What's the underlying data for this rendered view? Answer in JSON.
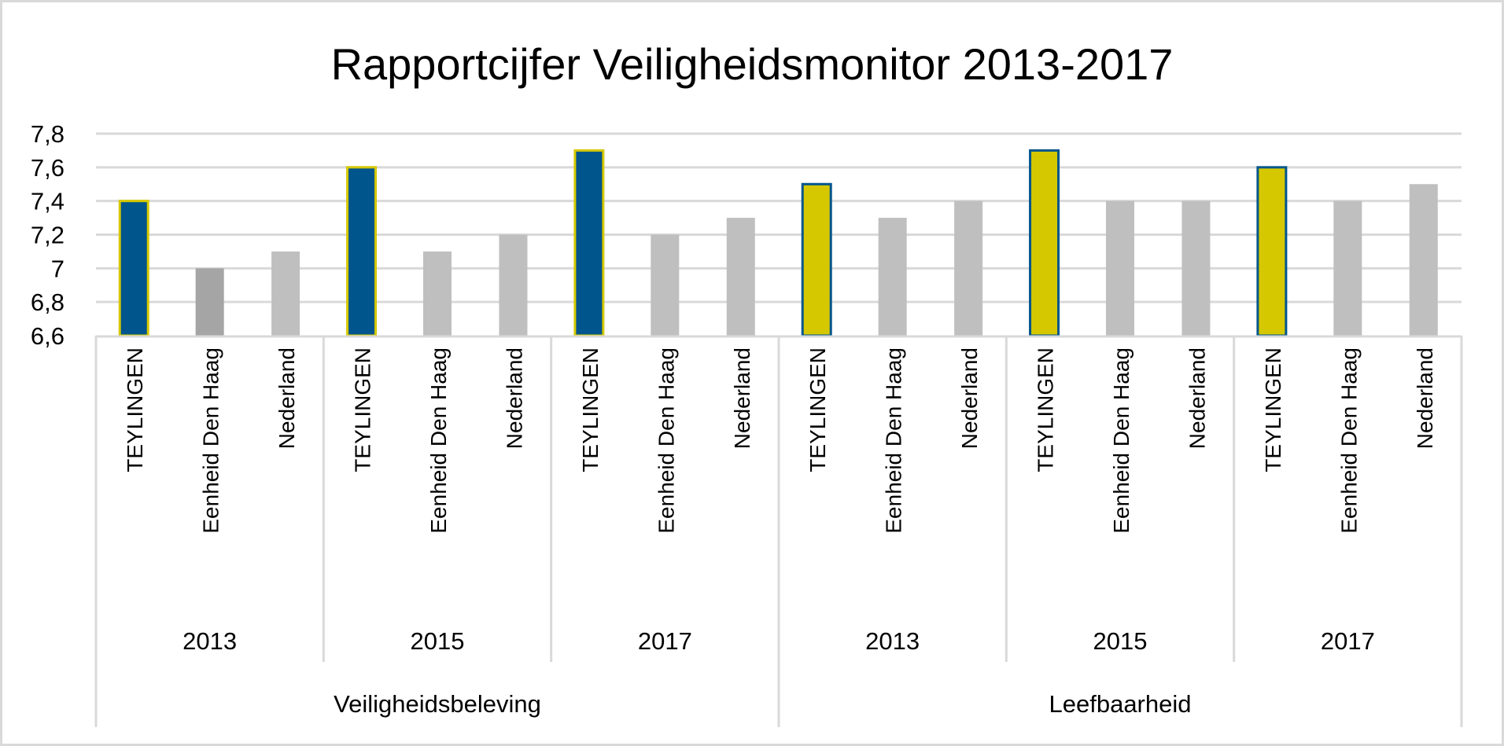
{
  "chart_data": {
    "type": "bar",
    "title": "Rapportcijfer Veiligheidsmonitor 2013-2017",
    "xlabel": "",
    "ylabel": "",
    "ylim": [
      6.6,
      7.8
    ],
    "yticks": [
      "6,6",
      "6,8",
      "7",
      "7,2",
      "7,4",
      "7,6",
      "7,8"
    ],
    "grid": true,
    "legend": "none",
    "groups": [
      {
        "label": "Veiligheidsbeleving",
        "years": [
          {
            "label": "2013",
            "categories": [
              "TEYLINGEN",
              "Eenheid Den Haag",
              "Nederland"
            ],
            "values": [
              7.4,
              7.0,
              7.1
            ]
          },
          {
            "label": "2015",
            "categories": [
              "TEYLINGEN",
              "Eenheid Den Haag",
              "Nederland"
            ],
            "values": [
              7.6,
              7.1,
              7.2
            ]
          },
          {
            "label": "2017",
            "categories": [
              "TEYLINGEN",
              "Eenheid Den Haag",
              "Nederland"
            ],
            "values": [
              7.7,
              7.2,
              7.3
            ]
          }
        ]
      },
      {
        "label": "Leefbaarheid",
        "years": [
          {
            "label": "2013",
            "categories": [
              "TEYLINGEN",
              "Eenheid Den Haag",
              "Nederland"
            ],
            "values": [
              7.5,
              7.3,
              7.4
            ]
          },
          {
            "label": "2015",
            "categories": [
              "TEYLINGEN",
              "Eenheid Den Haag",
              "Nederland"
            ],
            "values": [
              7.7,
              7.4,
              7.4
            ]
          },
          {
            "label": "2017",
            "categories": [
              "TEYLINGEN",
              "Eenheid Den Haag",
              "Nederland"
            ],
            "values": [
              7.6,
              7.4,
              7.5
            ]
          }
        ]
      }
    ],
    "colors": {
      "blue": "#00558C",
      "yellow": "#D6C800",
      "gray": "#BFBFBF",
      "dark_gray": "#A5A5A5",
      "grid": "#D9D9D9"
    }
  }
}
